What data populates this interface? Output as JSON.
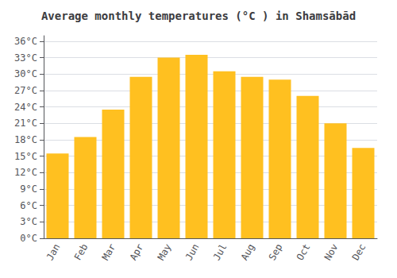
{
  "chart_data": {
    "type": "bar",
    "title": "Average monthly temperatures (°C ) in Shamsābād",
    "categories": [
      "Jan",
      "Feb",
      "Mar",
      "Apr",
      "May",
      "Jun",
      "Jul",
      "Aug",
      "Sep",
      "Oct",
      "Nov",
      "Dec"
    ],
    "values": [
      15.5,
      18.5,
      23.5,
      29.5,
      33.0,
      33.5,
      30.5,
      29.5,
      29.0,
      26.0,
      21.0,
      16.5
    ],
    "color": "#FFC020",
    "ylim": [
      0,
      37
    ],
    "yticks": [
      {
        "value": 0,
        "label": "0°C"
      },
      {
        "value": 3,
        "label": "3°C"
      },
      {
        "value": 6,
        "label": "6°C"
      },
      {
        "value": 9,
        "label": "9°C"
      },
      {
        "value": 12,
        "label": "12°C"
      },
      {
        "value": 15,
        "label": "15°C"
      },
      {
        "value": 18,
        "label": "18°C"
      },
      {
        "value": 21,
        "label": "21°C"
      },
      {
        "value": 24,
        "label": "24°C"
      },
      {
        "value": 27,
        "label": "27°C"
      },
      {
        "value": 30,
        "label": "30°C"
      },
      {
        "value": 33,
        "label": "33°C"
      },
      {
        "value": 36,
        "label": "36°C"
      }
    ],
    "grid": true
  }
}
